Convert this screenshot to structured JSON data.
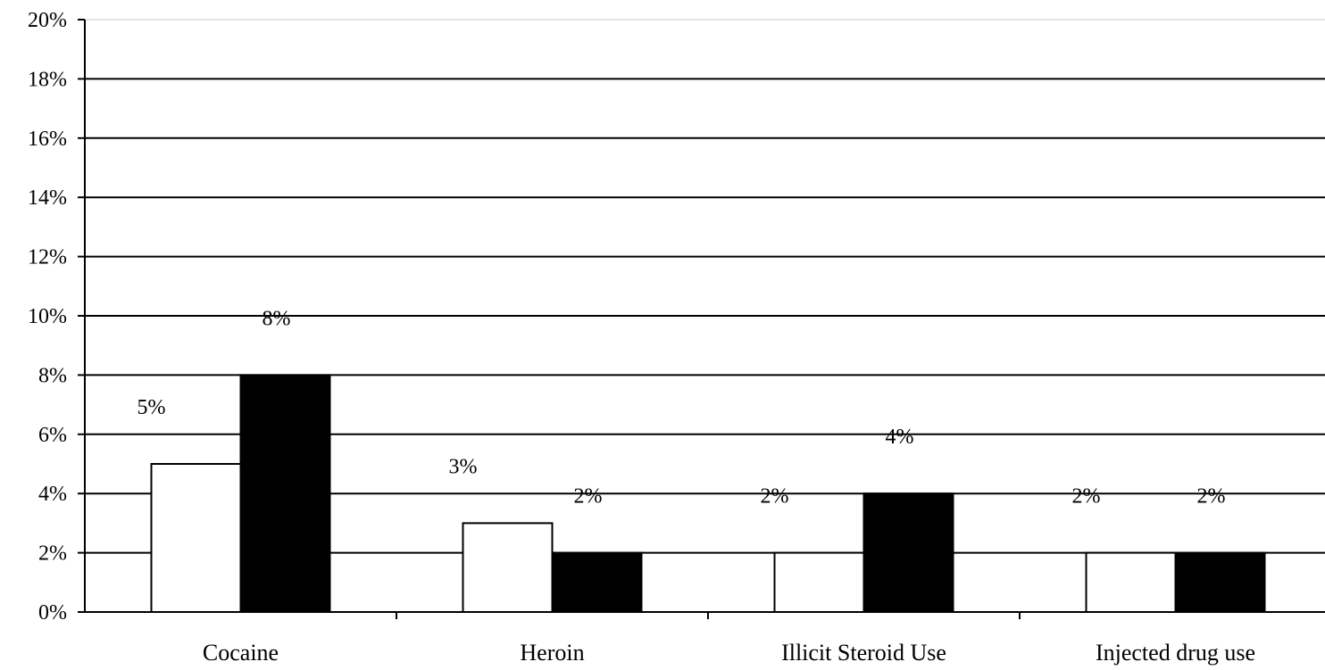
{
  "chart_data": {
    "type": "bar",
    "categories": [
      "Cocaine",
      "Heroin",
      "Illicit Steroid Use",
      "Injected drug use"
    ],
    "series": [
      {
        "values": [
          5,
          3,
          2,
          2
        ],
        "data_labels": [
          "5%",
          "3%",
          "2%",
          "2%"
        ],
        "color": "#ffffff"
      },
      {
        "values": [
          8,
          2,
          4,
          2
        ],
        "data_labels": [
          "8%",
          "2%",
          "4%",
          "2%"
        ],
        "color": "#000000"
      }
    ],
    "y_ticks": [
      "0%",
      "2%",
      "4%",
      "6%",
      "8%",
      "10%",
      "12%",
      "14%",
      "16%",
      "18%",
      "20%"
    ],
    "ylim": [
      0,
      20
    ],
    "y_step": 2,
    "grid": true,
    "legend": "none",
    "title": "",
    "xlabel": "",
    "ylabel": ""
  }
}
